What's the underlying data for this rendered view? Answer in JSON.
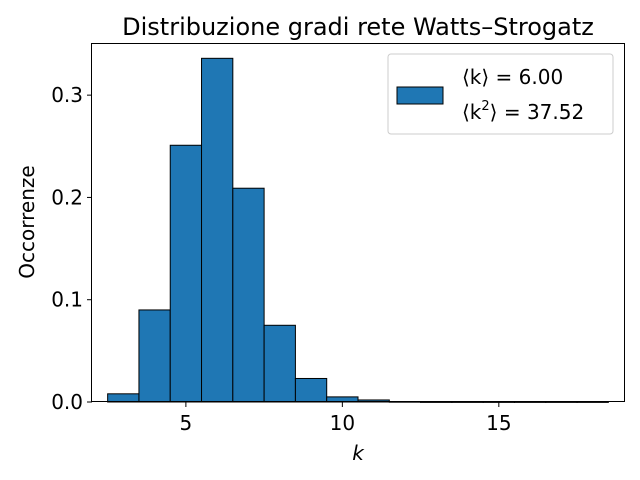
{
  "chart_data": {
    "type": "bar",
    "title": "Distribuzione gradi rete Watts–Strogatz",
    "xlabel": "k",
    "ylabel": "Occorrenze",
    "xlim": [
      2,
      19
    ],
    "ylim": [
      0,
      0.35
    ],
    "xticks": [
      5,
      10,
      15
    ],
    "yticks": [
      0.0,
      0.1,
      0.2,
      0.3
    ],
    "xtick_labels": [
      "5",
      "10",
      "15"
    ],
    "ytick_labels": [
      "0.0",
      "0.1",
      "0.2",
      "0.3"
    ],
    "bin_width": 1,
    "bins": [
      {
        "center": 3,
        "value": 0.008
      },
      {
        "center": 4,
        "value": 0.09
      },
      {
        "center": 5,
        "value": 0.251
      },
      {
        "center": 6,
        "value": 0.336
      },
      {
        "center": 7,
        "value": 0.209
      },
      {
        "center": 8,
        "value": 0.075
      },
      {
        "center": 9,
        "value": 0.023
      },
      {
        "center": 10,
        "value": 0.005
      },
      {
        "center": 11,
        "value": 0.002
      },
      {
        "center": 12,
        "value": 0.0003
      },
      {
        "center": 13,
        "value": 0.0001
      },
      {
        "center": 14,
        "value": 0.0001
      },
      {
        "center": 15,
        "value": 0.0001
      },
      {
        "center": 16,
        "value": 0.0001
      },
      {
        "center": 17,
        "value": 0.0001
      },
      {
        "center": 18,
        "value": 0.0001
      }
    ],
    "legend": {
      "placement": "top-right",
      "line1_prefix": "⟨k⟩ = ",
      "line1_value": "6.00",
      "line2_prefix": "⟨k",
      "line2_sup": "2",
      "line2_suffix": "⟩ = ",
      "line2_value": "37.52"
    },
    "bar_color": "#1f77b4",
    "edge_color": "#000000"
  }
}
